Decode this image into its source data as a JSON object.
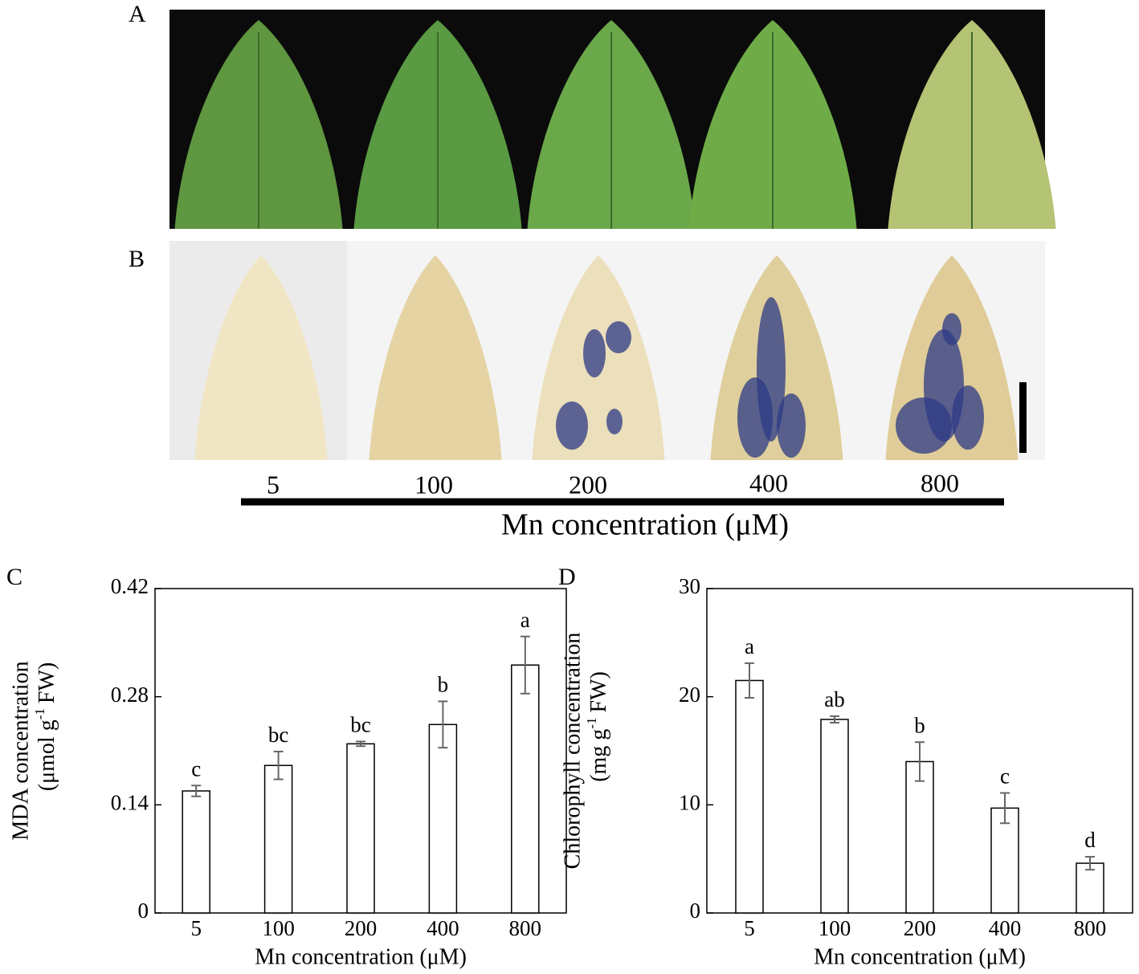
{
  "figure": {
    "panel_labels": [
      "A",
      "B"
    ],
    "concentrations": [
      "5",
      "100",
      "200",
      "400",
      "800"
    ],
    "axis_label": "Mn concentration (μM)"
  },
  "chart_data": [
    {
      "type": "bar",
      "panel": "C",
      "ylabel": "MDA concentration",
      "yunit": {
        "before": "(μmol g",
        "sup": "-1",
        "after": "FW)"
      },
      "xlabel": "Mn concentration (μM)",
      "categories": [
        "5",
        "100",
        "200",
        "400",
        "800"
      ],
      "values": [
        0.158,
        0.191,
        0.219,
        0.244,
        0.321
      ],
      "errors": [
        0.007,
        0.018,
        0.003,
        0.03,
        0.037
      ],
      "annotations": [
        "c",
        "bc",
        "bc",
        "b",
        "a"
      ],
      "color": "#ffffff",
      "ylim": [
        0,
        0.42
      ],
      "yticks": [
        0,
        0.14,
        0.28,
        0.42
      ]
    },
    {
      "type": "bar",
      "panel": "D",
      "ylabel": "Chlorophyll concentration",
      "yunit": {
        "before": "(mg g",
        "sup": "-1",
        "after": "FW)"
      },
      "xlabel": "Mn concentration (μM)",
      "categories": [
        "5",
        "100",
        "200",
        "400",
        "800"
      ],
      "values": [
        21.5,
        17.9,
        14.0,
        9.7,
        4.6
      ],
      "errors": [
        1.6,
        0.3,
        1.8,
        1.4,
        0.6
      ],
      "annotations": [
        "a",
        "ab",
        "b",
        "c",
        "d"
      ],
      "color": "#ffffff",
      "ylim": [
        0,
        30
      ],
      "yticks": [
        0,
        10,
        20,
        30
      ]
    }
  ]
}
